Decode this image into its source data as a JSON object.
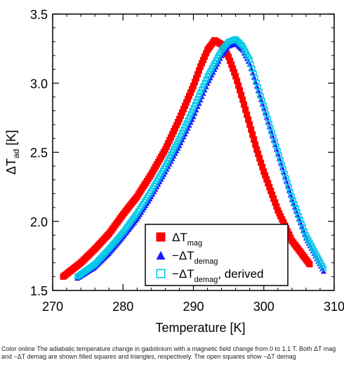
{
  "chart_data": {
    "type": "scatter",
    "xlabel": "Temperature [K]",
    "ylabel": {
      "main": "ΔT",
      "sub": "ad",
      "unit": "[K]"
    },
    "xlim": [
      270,
      310
    ],
    "ylim": [
      1.5,
      3.5
    ],
    "xticks": [
      270,
      280,
      290,
      300,
      310
    ],
    "yticks": [
      1.5,
      2.0,
      2.5,
      3.0,
      3.5
    ],
    "xtick_labels": [
      "270",
      "280",
      "290",
      "300",
      "310"
    ],
    "ytick_labels": [
      "1.5",
      "2.0",
      "2.5",
      "3.0",
      "3.5"
    ],
    "legend_position": "bottom-right",
    "grid": false,
    "series": [
      {
        "name": "ΔT mag",
        "legend": {
          "main": "ΔT",
          "sub": "mag",
          "suffix": ""
        },
        "marker": "filled-square",
        "color": "#ff0000",
        "x": [
          271.5,
          274,
          276,
          278,
          280,
          282,
          284,
          286,
          288,
          290,
          291,
          292,
          293,
          294,
          295,
          296,
          297,
          298,
          299,
          300,
          302,
          304,
          306.5
        ],
        "y": [
          1.6,
          1.7,
          1.8,
          1.91,
          2.05,
          2.18,
          2.34,
          2.52,
          2.74,
          2.98,
          3.12,
          3.24,
          3.31,
          3.28,
          3.19,
          3.05,
          2.88,
          2.7,
          2.52,
          2.36,
          2.08,
          1.86,
          1.69
        ]
      },
      {
        "name": "−ΔT demag",
        "legend": {
          "main": "−ΔT",
          "sub": "demag",
          "suffix": ""
        },
        "marker": "filled-triangle",
        "color": "#1a1aff",
        "x": [
          273.5,
          276,
          278,
          280,
          282,
          284,
          286,
          288,
          290,
          292,
          294,
          295,
          296,
          297,
          298,
          300,
          302,
          304,
          306,
          308.5
        ],
        "y": [
          1.59,
          1.67,
          1.77,
          1.89,
          2.02,
          2.18,
          2.36,
          2.55,
          2.76,
          3.0,
          3.2,
          3.27,
          3.29,
          3.24,
          3.14,
          2.82,
          2.49,
          2.16,
          1.88,
          1.64
        ]
      },
      {
        "name": "−ΔT demag, derived",
        "legend": {
          "main": "−ΔT",
          "sub": "demag",
          "suffix": ", derived"
        },
        "marker": "open-square",
        "color": "#00c8e6",
        "x": [
          273.5,
          276,
          278,
          280,
          282,
          284,
          286,
          288,
          290,
          292,
          294,
          295,
          296,
          297,
          298,
          300,
          302,
          304,
          306,
          308.5
        ],
        "y": [
          1.6,
          1.69,
          1.8,
          1.92,
          2.06,
          2.22,
          2.4,
          2.6,
          2.82,
          3.05,
          3.24,
          3.3,
          3.32,
          3.27,
          3.17,
          2.84,
          2.51,
          2.18,
          1.9,
          1.66
        ]
      }
    ]
  },
  "caption": "Color online The adiabatic temperature change in gadolinium with a magnetic field change from 0 to 1.1 T. Both ΔT mag and −ΔT demag are shown filled squares and triangles, respectively. The open squares show −ΔT demag"
}
